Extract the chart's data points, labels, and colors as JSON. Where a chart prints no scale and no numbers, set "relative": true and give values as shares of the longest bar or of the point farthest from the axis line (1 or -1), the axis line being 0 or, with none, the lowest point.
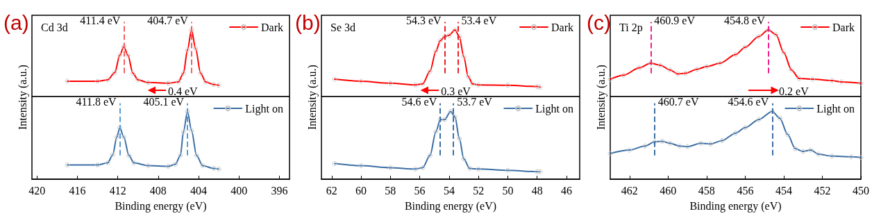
{
  "chart_data": [
    {
      "type": "line",
      "title": "(a)",
      "subtitle": "Cd 3d",
      "ylabel": "Intensity (a.u.)",
      "relative": true,
      "xlim": [
        420.5,
        395
      ],
      "tick_labels": false,
      "legend": "top right",
      "marker": "circle",
      "annotations": [
        "0.4 eV"
      ],
      "series": [
        {
          "name": "Dark",
          "color": "#ff0000",
          "x": [
            417,
            414,
            413,
            412.3,
            411.8,
            411.4,
            411,
            410.5,
            410,
            409,
            407,
            406,
            405.5,
            405.1,
            404.7,
            404.3,
            403.8,
            403.3,
            402.5,
            402
          ],
          "values": [
            0.23,
            0.23,
            0.25,
            0.36,
            0.62,
            0.75,
            0.62,
            0.35,
            0.25,
            0.21,
            0.2,
            0.22,
            0.35,
            0.7,
            1,
            0.72,
            0.35,
            0.22,
            0.18,
            0.17
          ]
        }
      ],
      "ref_lines": [
        {
          "axis": "x",
          "value": 411.4,
          "label": "411.4 eV",
          "color": "#f06060",
          "line_style": "dashed"
        },
        {
          "axis": "x",
          "value": 404.7,
          "label": "404.7 eV",
          "color": "#f06060",
          "line_style": "dashed"
        }
      ]
    },
    {
      "type": "line",
      "xlabel": "Binding energy (eV)",
      "relative": true,
      "xlim": [
        420.5,
        395
      ],
      "xticks": [
        420,
        416,
        412,
        408,
        404,
        400,
        396
      ],
      "tick_labels": "x",
      "legend": "top right",
      "marker": "circle",
      "series": [
        {
          "name": "Light on",
          "color": "#3a6ea5",
          "x": [
            417,
            414,
            413,
            412.5,
            412.1,
            411.8,
            411.4,
            410.9,
            410.4,
            409,
            407,
            406.3,
            405.8,
            405.5,
            405.1,
            404.7,
            404.2,
            403.6,
            402.5,
            402
          ],
          "values": [
            0.21,
            0.21,
            0.24,
            0.36,
            0.62,
            0.76,
            0.62,
            0.35,
            0.24,
            0.2,
            0.19,
            0.22,
            0.35,
            0.7,
            1,
            0.72,
            0.35,
            0.2,
            0.16,
            0.15
          ]
        }
      ],
      "ref_lines": [
        {
          "axis": "x",
          "value": 411.8,
          "label": "411.8 eV",
          "color": "#5b9bd5",
          "line_style": "dashed"
        },
        {
          "axis": "x",
          "value": 405.1,
          "label": "405.1 eV",
          "color": "#5b9bd5",
          "line_style": "dashed"
        }
      ]
    },
    {
      "type": "line",
      "title": "(b)",
      "subtitle": "Se 3d",
      "ylabel": "Intensity (a.u.)",
      "relative": true,
      "xlim": [
        62.7,
        45.1
      ],
      "tick_labels": false,
      "legend": "top right",
      "marker": "circle",
      "annotations": [
        "0.3 eV"
      ],
      "series": [
        {
          "name": "Dark",
          "color": "#ff0000",
          "x": [
            61.8,
            60,
            58,
            56.3,
            55.8,
            55.3,
            54.9,
            54.6,
            54.3,
            54,
            53.6,
            53.3,
            53,
            52.7,
            52.4,
            52,
            50,
            48,
            47.8
          ],
          "values": [
            0.26,
            0.23,
            0.2,
            0.175,
            0.19,
            0.38,
            0.68,
            0.84,
            0.9,
            0.92,
            1,
            0.9,
            0.6,
            0.3,
            0.19,
            0.175,
            0.17,
            0.15,
            0.14
          ]
        }
      ],
      "ref_lines": [
        {
          "axis": "x",
          "value": 54.3,
          "label": "54.3 eV",
          "color": "#ee1c25",
          "line_style": "dashed"
        },
        {
          "axis": "x",
          "value": 53.4,
          "label": "53.4 eV",
          "color": "#ee1c25",
          "line_style": "dashed"
        }
      ]
    },
    {
      "type": "line",
      "xlabel": "Binding energy (eV)",
      "relative": true,
      "xlim": [
        62.7,
        45.1
      ],
      "xticks": [
        62,
        60,
        58,
        56,
        54,
        52,
        50,
        48,
        46
      ],
      "tick_labels": "x",
      "legend": "top right",
      "marker": "circle",
      "series": [
        {
          "name": "Light on",
          "color": "#3a6ea5",
          "x": [
            61.8,
            60,
            58,
            56.3,
            55.8,
            55.3,
            54.9,
            54.6,
            54.3,
            53.9,
            53.6,
            53.3,
            53,
            52.6,
            52,
            50,
            48,
            47.8
          ],
          "values": [
            0.23,
            0.2,
            0.17,
            0.15,
            0.17,
            0.35,
            0.7,
            0.88,
            0.88,
            1,
            0.92,
            0.6,
            0.3,
            0.16,
            0.15,
            0.13,
            0.11,
            0.11
          ]
        }
      ],
      "ref_lines": [
        {
          "axis": "x",
          "value": 54.6,
          "label": "54.6 eV",
          "color": "#3a6ea5",
          "line_style": "dashed"
        },
        {
          "axis": "x",
          "value": 53.7,
          "label": "53.7 eV",
          "color": "#3a6ea5",
          "line_style": "dashed"
        }
      ]
    },
    {
      "type": "line",
      "title": "(c)",
      "subtitle": "Ti 2p",
      "ylabel": "Intensity (a.u.)",
      "relative": true,
      "xlim": [
        463,
        450
      ],
      "tick_labels": false,
      "legend": "top right",
      "marker": "circle",
      "annotations": [
        "0.2 eV"
      ],
      "series": [
        {
          "name": "Dark",
          "color": "#ff0000",
          "x": [
            463,
            462.3,
            461.5,
            460.9,
            460.4,
            459.9,
            459.5,
            459.1,
            458.5,
            458,
            457.3,
            456.5,
            456,
            455.3,
            454.8,
            454.4,
            454,
            453.6,
            453.2,
            452.5,
            451.5,
            451,
            450
          ],
          "values": [
            0.26,
            0.32,
            0.43,
            0.5,
            0.47,
            0.4,
            0.34,
            0.35,
            0.41,
            0.45,
            0.5,
            0.63,
            0.74,
            0.9,
            1,
            0.93,
            0.66,
            0.4,
            0.27,
            0.26,
            0.24,
            0.22,
            0.2
          ]
        }
      ],
      "ref_lines": [
        {
          "axis": "x",
          "value": 460.9,
          "label": "460.9 eV",
          "color": "#f0208a",
          "line_style": "dashed"
        },
        {
          "axis": "x",
          "value": 454.8,
          "label": "454.8 eV",
          "color": "#f0208a",
          "line_style": "dashed"
        }
      ]
    },
    {
      "type": "line",
      "xlabel": "Binding energy (eV)",
      "relative": true,
      "xlim": [
        463,
        450
      ],
      "xticks": [
        462,
        460,
        458,
        456,
        454,
        452,
        450
      ],
      "tick_labels": "x",
      "legend": "top right",
      "marker": "circle",
      "series": [
        {
          "name": "Light on",
          "color": "#3a6ea5",
          "x": [
            463,
            462,
            461.2,
            460.7,
            460.3,
            459.9,
            459.4,
            459,
            458.3,
            457.8,
            457.2,
            456.5,
            456,
            455.3,
            454.6,
            454.2,
            453.8,
            453.4,
            453,
            452.6,
            452.2,
            451.5,
            450.5,
            450
          ],
          "values": [
            0.38,
            0.43,
            0.49,
            0.55,
            0.56,
            0.53,
            0.49,
            0.48,
            0.53,
            0.52,
            0.57,
            0.68,
            0.76,
            0.88,
            1,
            0.9,
            0.66,
            0.45,
            0.41,
            0.43,
            0.37,
            0.34,
            0.33,
            0.32
          ]
        }
      ],
      "ref_lines": [
        {
          "axis": "x",
          "value": 460.7,
          "label": "460.7 eV",
          "color": "#3a6ea5",
          "line_style": "dashed"
        },
        {
          "axis": "x",
          "value": 454.6,
          "label": "454.6 eV",
          "color": "#3a6ea5",
          "line_style": "dashed"
        }
      ]
    }
  ]
}
